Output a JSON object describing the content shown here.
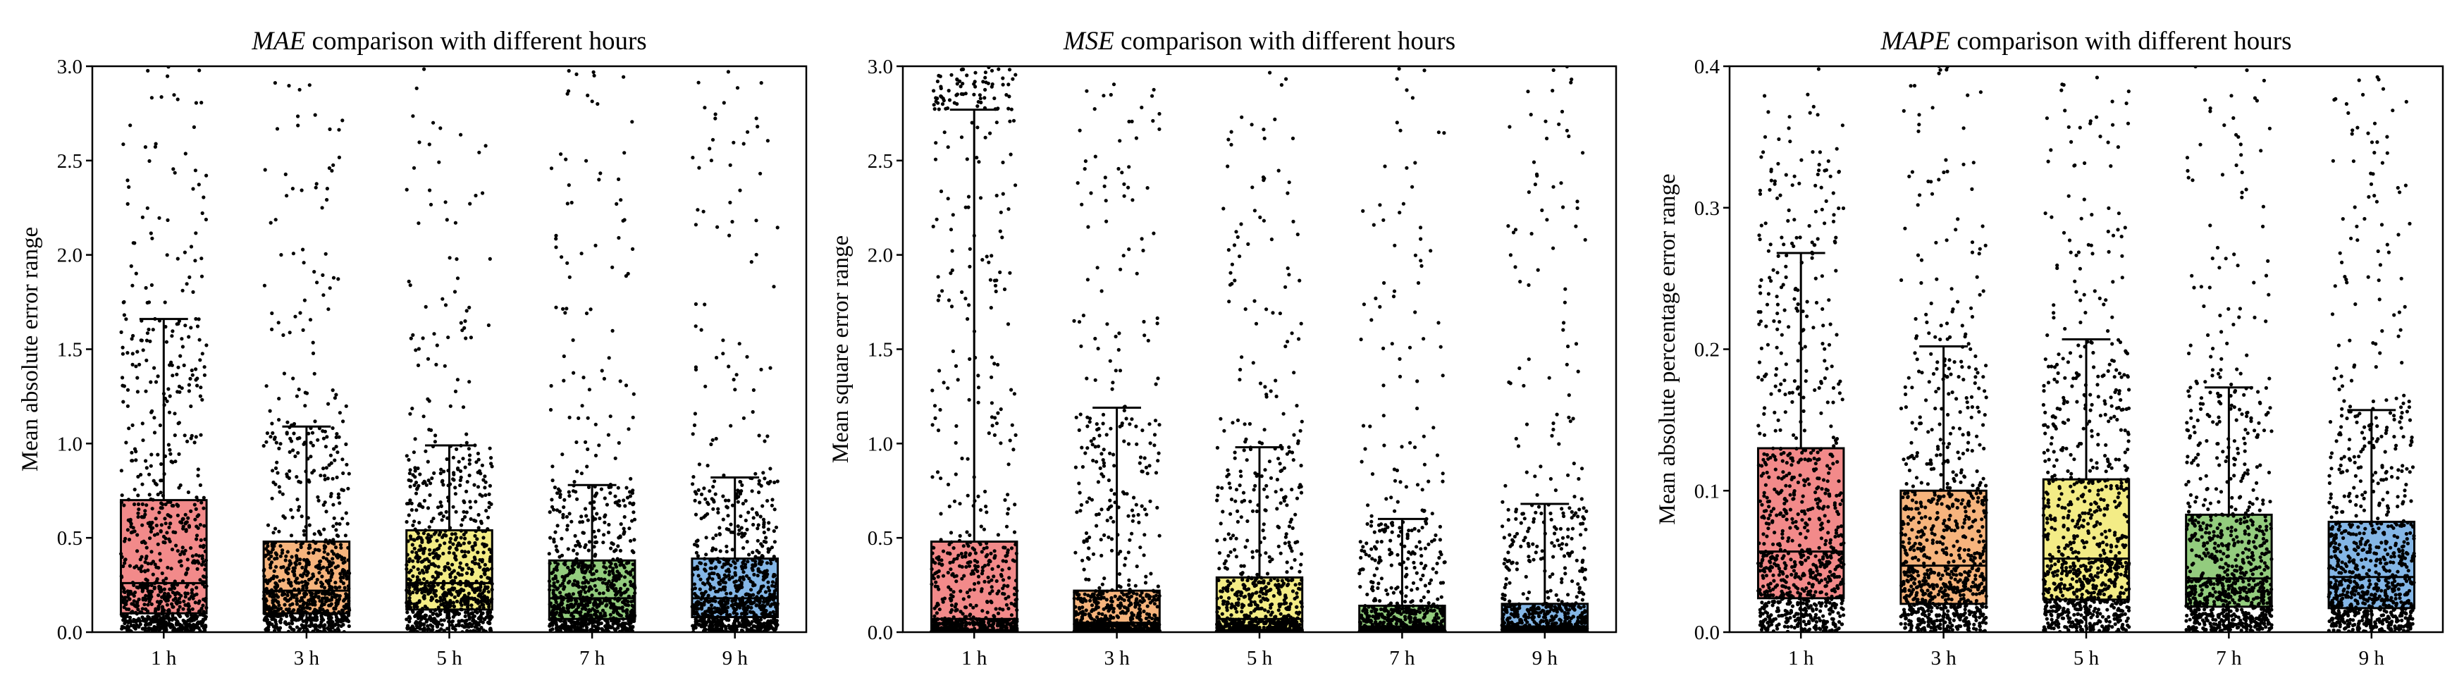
{
  "chart_data": [
    {
      "type": "box",
      "title_metric": "MAE",
      "title_rest": " comparison with different hours",
      "ylabel": "Mean absolute error range",
      "ylim": [
        0,
        3.0
      ],
      "yticks": [
        0.0,
        0.5,
        1.0,
        1.5,
        2.0,
        2.5,
        3.0
      ],
      "ytick_labels": [
        "0.0",
        "0.5",
        "1.0",
        "1.5",
        "2.0",
        "2.5",
        "3.0"
      ],
      "categories": [
        "1 h",
        "3 h",
        "5 h",
        "7 h",
        "9 h"
      ],
      "box_colors": [
        "#f28a8a",
        "#f6b47d",
        "#f3ec86",
        "#93cc7e",
        "#84b6e6"
      ],
      "boxes": [
        {
          "q1": 0.1,
          "median": 0.26,
          "q3": 0.7,
          "whisker_low": 0.0,
          "whisker_high": 1.66
        },
        {
          "q1": 0.1,
          "median": 0.22,
          "q3": 0.48,
          "whisker_low": 0.0,
          "whisker_high": 1.09
        },
        {
          "q1": 0.12,
          "median": 0.26,
          "q3": 0.54,
          "whisker_low": 0.0,
          "whisker_high": 0.99
        },
        {
          "q1": 0.07,
          "median": 0.18,
          "q3": 0.38,
          "whisker_low": 0.0,
          "whisker_high": 0.78
        },
        {
          "q1": 0.08,
          "median": 0.18,
          "q3": 0.39,
          "whisker_low": 0.0,
          "whisker_high": 0.82
        }
      ]
    },
    {
      "type": "box",
      "title_metric": "MSE",
      "title_rest": " comparison with different hours",
      "ylabel": "Mean square error range",
      "ylim": [
        0,
        3.0
      ],
      "yticks": [
        0.0,
        0.5,
        1.0,
        1.5,
        2.0,
        2.5,
        3.0
      ],
      "ytick_labels": [
        "0.0",
        "0.5",
        "1.0",
        "1.5",
        "2.0",
        "2.5",
        "3.0"
      ],
      "categories": [
        "1 h",
        "3 h",
        "5 h",
        "7 h",
        "9 h"
      ],
      "box_colors": [
        "#f28a8a",
        "#f6b47d",
        "#f3ec86",
        "#93cc7e",
        "#84b6e6"
      ],
      "boxes": [
        {
          "q1": 0.01,
          "median": 0.07,
          "q3": 0.48,
          "whisker_low": 0.0,
          "whisker_high": 2.77
        },
        {
          "q1": 0.01,
          "median": 0.05,
          "q3": 0.22,
          "whisker_low": 0.0,
          "whisker_high": 1.19
        },
        {
          "q1": 0.01,
          "median": 0.07,
          "q3": 0.29,
          "whisker_low": 0.0,
          "whisker_high": 0.98
        },
        {
          "q1": 0.005,
          "median": 0.03,
          "q3": 0.14,
          "whisker_low": 0.0,
          "whisker_high": 0.6
        },
        {
          "q1": 0.005,
          "median": 0.03,
          "q3": 0.15,
          "whisker_low": 0.0,
          "whisker_high": 0.68
        }
      ]
    },
    {
      "type": "box",
      "title_metric": "MAPE",
      "title_rest": " comparison with different hours",
      "ylabel": "Mean absolute percentage error range",
      "ylim": [
        0,
        0.4
      ],
      "yticks": [
        0.0,
        0.1,
        0.2,
        0.3,
        0.4
      ],
      "ytick_labels": [
        "0.0",
        "0.1",
        "0.2",
        "0.3",
        "0.4"
      ],
      "categories": [
        "1 h",
        "3 h",
        "5 h",
        "7 h",
        "9 h"
      ],
      "box_colors": [
        "#f28a8a",
        "#f6b47d",
        "#f3ec86",
        "#93cc7e",
        "#84b6e6"
      ],
      "boxes": [
        {
          "q1": 0.024,
          "median": 0.057,
          "q3": 0.13,
          "whisker_low": 0.0,
          "whisker_high": 0.268
        },
        {
          "q1": 0.02,
          "median": 0.047,
          "q3": 0.1,
          "whisker_low": 0.0,
          "whisker_high": 0.202
        },
        {
          "q1": 0.023,
          "median": 0.052,
          "q3": 0.108,
          "whisker_low": 0.0,
          "whisker_high": 0.207
        },
        {
          "q1": 0.018,
          "median": 0.038,
          "q3": 0.083,
          "whisker_low": 0.0,
          "whisker_high": 0.173
        },
        {
          "q1": 0.017,
          "median": 0.039,
          "q3": 0.078,
          "whisker_low": 0.0,
          "whisker_high": 0.157
        }
      ]
    }
  ]
}
